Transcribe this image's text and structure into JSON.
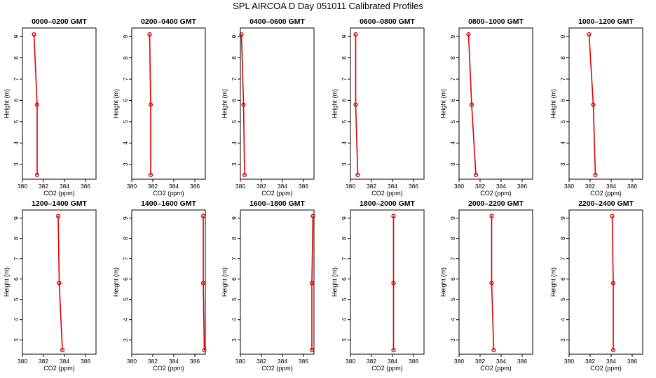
{
  "title": "SPL AIRCOA D  Day 051011  Calibrated Profiles",
  "colors": {
    "profile": "#dd0000",
    "axis": "#000000"
  },
  "chart_data": [
    {
      "type": "line",
      "title": "0000–0200 GMT",
      "xlabel": "CO2 (ppm)",
      "ylabel": "Height (m)",
      "xlim": [
        380,
        387
      ],
      "ylim": [
        2.3,
        9.4
      ],
      "xticks": [
        380,
        382,
        384,
        386
      ],
      "yticks": [
        3,
        4,
        5,
        6,
        7,
        8,
        9
      ],
      "series": [
        {
          "x": [
            381.4,
            381.4,
            381.1
          ],
          "y": [
            2.5,
            5.8,
            9.1
          ]
        }
      ]
    },
    {
      "type": "line",
      "title": "0200–0400 GMT",
      "xlabel": "CO2 (ppm)",
      "ylabel": "Height (m)",
      "xlim": [
        380,
        387
      ],
      "ylim": [
        2.3,
        9.4
      ],
      "xticks": [
        380,
        382,
        384,
        386
      ],
      "yticks": [
        3,
        4,
        5,
        6,
        7,
        8,
        9
      ],
      "series": [
        {
          "x": [
            381.8,
            381.8,
            381.7
          ],
          "y": [
            2.5,
            5.8,
            9.1
          ]
        }
      ]
    },
    {
      "type": "line",
      "title": "0400–0600 GMT",
      "xlabel": "CO2 (ppm)",
      "ylabel": "Height (m)",
      "xlim": [
        380,
        387
      ],
      "ylim": [
        2.3,
        9.4
      ],
      "xticks": [
        380,
        382,
        384,
        386
      ],
      "yticks": [
        3,
        4,
        5,
        6,
        7,
        8,
        9
      ],
      "series": [
        {
          "x": [
            380.4,
            380.3,
            380.1
          ],
          "y": [
            2.5,
            5.8,
            9.1
          ]
        }
      ]
    },
    {
      "type": "line",
      "title": "0600–0800 GMT",
      "xlabel": "CO2 (ppm)",
      "ylabel": "Height (m)",
      "xlim": [
        380,
        387
      ],
      "ylim": [
        2.3,
        9.4
      ],
      "xticks": [
        380,
        382,
        384,
        386
      ],
      "yticks": [
        3,
        4,
        5,
        6,
        7,
        8,
        9
      ],
      "series": [
        {
          "x": [
            380.7,
            380.5,
            380.5
          ],
          "y": [
            2.5,
            5.8,
            9.1
          ]
        }
      ]
    },
    {
      "type": "line",
      "title": "0800–1000 GMT",
      "xlabel": "CO2 (ppm)",
      "ylabel": "Height (m)",
      "xlim": [
        380,
        387
      ],
      "ylim": [
        2.3,
        9.4
      ],
      "xticks": [
        380,
        382,
        384,
        386
      ],
      "yticks": [
        3,
        4,
        5,
        6,
        7,
        8,
        9
      ],
      "series": [
        {
          "x": [
            381.6,
            381.2,
            380.9
          ],
          "y": [
            2.5,
            5.8,
            9.1
          ]
        }
      ]
    },
    {
      "type": "line",
      "title": "1000–1200 GMT",
      "xlabel": "CO2 (ppm)",
      "ylabel": "Height (m)",
      "xlim": [
        380,
        387
      ],
      "ylim": [
        2.3,
        9.4
      ],
      "xticks": [
        380,
        382,
        384,
        386
      ],
      "yticks": [
        3,
        4,
        5,
        6,
        7,
        8,
        9
      ],
      "series": [
        {
          "x": [
            382.5,
            382.3,
            381.9
          ],
          "y": [
            2.5,
            5.8,
            9.1
          ]
        }
      ]
    },
    {
      "type": "line",
      "title": "1200–1400 GMT",
      "xlabel": "CO2 (ppm)",
      "ylabel": "Height (m)",
      "xlim": [
        380,
        387
      ],
      "ylim": [
        2.3,
        9.4
      ],
      "xticks": [
        380,
        382,
        384,
        386
      ],
      "yticks": [
        3,
        4,
        5,
        6,
        7,
        8,
        9
      ],
      "series": [
        {
          "x": [
            383.8,
            383.5,
            383.4
          ],
          "y": [
            2.5,
            5.8,
            9.1
          ]
        }
      ]
    },
    {
      "type": "line",
      "title": "1400–1600 GMT",
      "xlabel": "CO2 (ppm)",
      "ylabel": "Height (m)",
      "xlim": [
        380,
        387
      ],
      "ylim": [
        2.3,
        9.4
      ],
      "xticks": [
        380,
        382,
        384,
        386
      ],
      "yticks": [
        3,
        4,
        5,
        6,
        7,
        8,
        9
      ],
      "series": [
        {
          "x": [
            386.9,
            386.8,
            386.8
          ],
          "y": [
            2.5,
            5.8,
            9.1
          ]
        }
      ]
    },
    {
      "type": "line",
      "title": "1600–1800 GMT",
      "xlabel": "CO2 (ppm)",
      "ylabel": "Height (m)",
      "xlim": [
        380,
        387
      ],
      "ylim": [
        2.3,
        9.4
      ],
      "xticks": [
        380,
        382,
        384,
        386
      ],
      "yticks": [
        3,
        4,
        5,
        6,
        7,
        8,
        9
      ],
      "series": [
        {
          "x": [
            386.8,
            386.8,
            386.9
          ],
          "y": [
            2.5,
            5.8,
            9.1
          ]
        }
      ]
    },
    {
      "type": "line",
      "title": "1800–2000 GMT",
      "xlabel": "CO2 (ppm)",
      "ylabel": "Height (m)",
      "xlim": [
        380,
        387
      ],
      "ylim": [
        2.3,
        9.4
      ],
      "xticks": [
        380,
        382,
        384,
        386
      ],
      "yticks": [
        3,
        4,
        5,
        6,
        7,
        8,
        9
      ],
      "series": [
        {
          "x": [
            384.1,
            384.1,
            384.1
          ],
          "y": [
            2.5,
            5.8,
            9.1
          ]
        }
      ]
    },
    {
      "type": "line",
      "title": "2000–2200 GMT",
      "xlabel": "CO2 (ppm)",
      "ylabel": "Height (m)",
      "xlim": [
        380,
        387
      ],
      "ylim": [
        2.3,
        9.4
      ],
      "xticks": [
        380,
        382,
        384,
        386
      ],
      "yticks": [
        3,
        4,
        5,
        6,
        7,
        8,
        9
      ],
      "series": [
        {
          "x": [
            383.3,
            383.1,
            383.1
          ],
          "y": [
            2.5,
            5.8,
            9.1
          ]
        }
      ]
    },
    {
      "type": "line",
      "title": "2200–2400 GMT",
      "xlabel": "CO2 (ppm)",
      "ylabel": "Height (m)",
      "xlim": [
        380,
        387
      ],
      "ylim": [
        2.3,
        9.4
      ],
      "xticks": [
        380,
        382,
        384,
        386
      ],
      "yticks": [
        3,
        4,
        5,
        6,
        7,
        8,
        9
      ],
      "series": [
        {
          "x": [
            384.2,
            384.2,
            384.1
          ],
          "y": [
            2.5,
            5.8,
            9.1
          ]
        }
      ]
    }
  ]
}
